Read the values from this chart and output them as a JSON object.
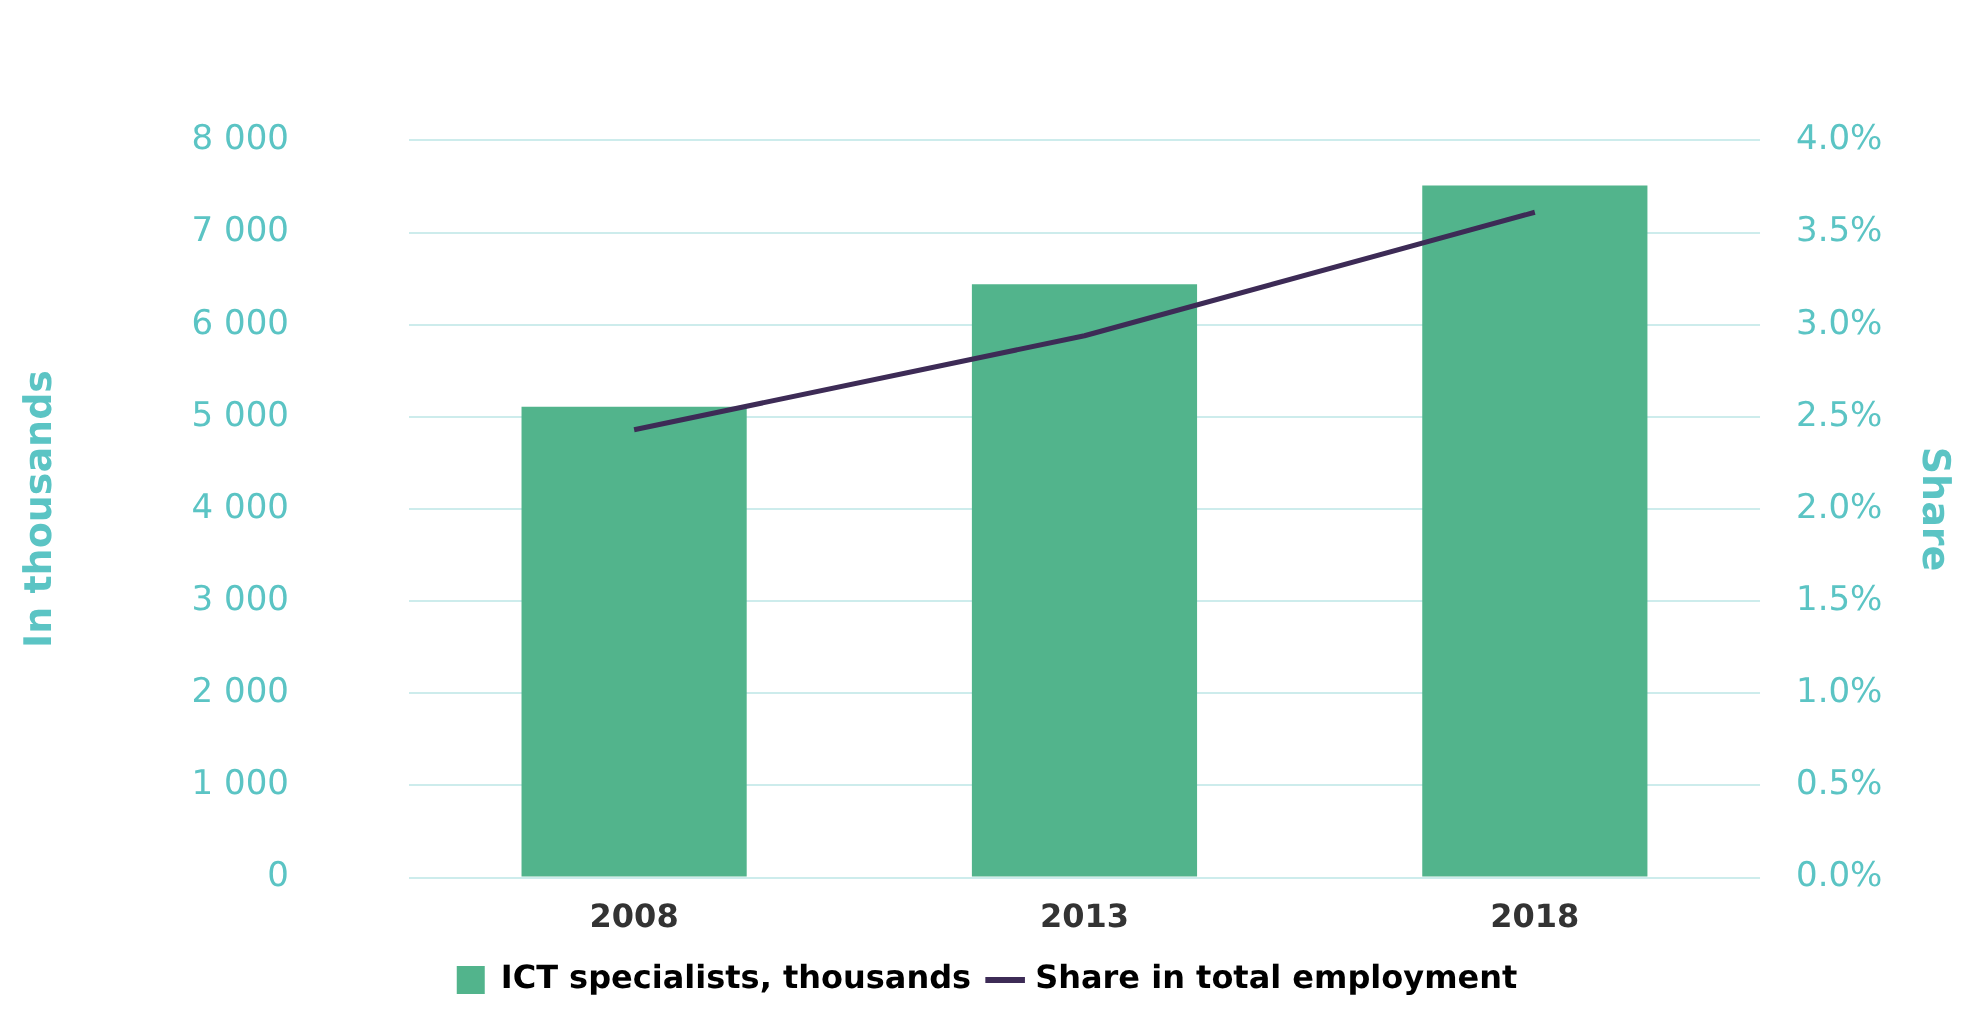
{
  "chart_data": {
    "type": "bar",
    "ylabel": "In thousands",
    "y2label": "Share",
    "categories": [
      "2008",
      "2013",
      "2018"
    ],
    "series": [
      {
        "name": "ICT specialists, thousands",
        "color": "#52b48c",
        "values": [
          5110,
          6440,
          7510
        ]
      },
      {
        "name": "Share in total employment",
        "type": "line",
        "axis": "y2",
        "color": "#3d2b56",
        "values": [
          2.43,
          2.94,
          3.61
        ]
      }
    ],
    "ylim": [
      0,
      8000
    ],
    "yticks": [
      {
        "value": 0,
        "label": "0"
      },
      {
        "value": 1000,
        "label": "1 000"
      },
      {
        "value": 2000,
        "label": "2 000"
      },
      {
        "value": 3000,
        "label": "3 000"
      },
      {
        "value": 4000,
        "label": "4 000"
      },
      {
        "value": 5000,
        "label": "5 000"
      },
      {
        "value": 6000,
        "label": "6 000"
      },
      {
        "value": 7000,
        "label": "7 000"
      },
      {
        "value": 8000,
        "label": "8 000"
      }
    ],
    "y2lim": [
      0,
      4
    ],
    "y2ticks": [
      {
        "value": 0,
        "label": "0.0%"
      },
      {
        "value": 0.5,
        "label": "0.5%"
      },
      {
        "value": 1,
        "label": "1.0%"
      },
      {
        "value": 1.5,
        "label": "1.5%"
      },
      {
        "value": 2,
        "label": "2.0%"
      },
      {
        "value": 2.5,
        "label": "2.5%"
      },
      {
        "value": 3,
        "label": "3.0%"
      },
      {
        "value": 3.5,
        "label": "3.5%"
      },
      {
        "value": 4,
        "label": "4.0%"
      }
    ],
    "grid": "y",
    "legend": "bottom",
    "marker": "none"
  }
}
